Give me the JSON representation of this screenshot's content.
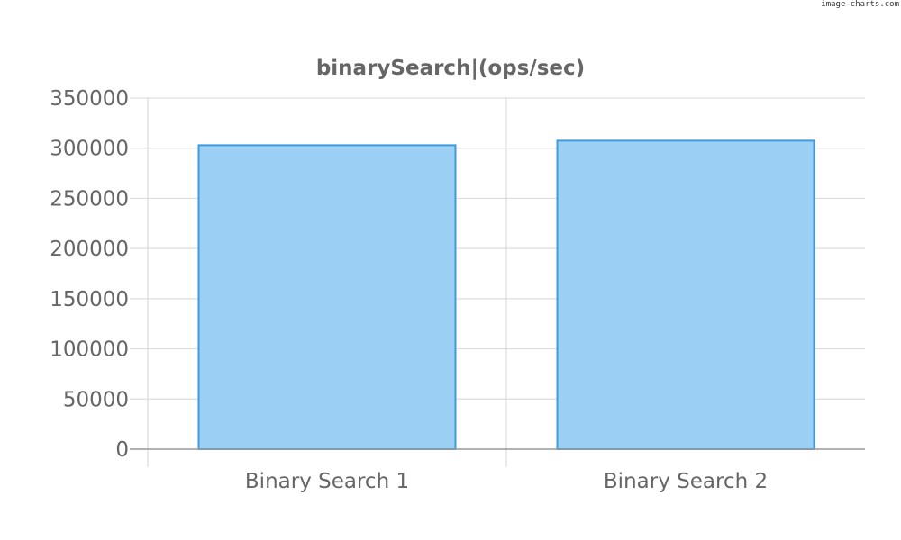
{
  "watermark": "image-charts.com",
  "chart_data": {
    "type": "bar",
    "title": "binarySearch|(ops/sec)",
    "categories": [
      "Binary Search 1",
      "Binary Search 2"
    ],
    "series": [
      {
        "values": [
          303000,
          307500
        ]
      }
    ],
    "ylim": [
      0,
      350000
    ],
    "yticks": [
      0,
      50000,
      100000,
      150000,
      200000,
      250000,
      300000,
      350000
    ],
    "grid": true,
    "legend": "none",
    "colors": {
      "bar_fill": "#9bcff3",
      "bar_stroke": "#3d9bdf",
      "grid": "#dddddd",
      "axis": "#999999",
      "text": "#666666"
    }
  }
}
